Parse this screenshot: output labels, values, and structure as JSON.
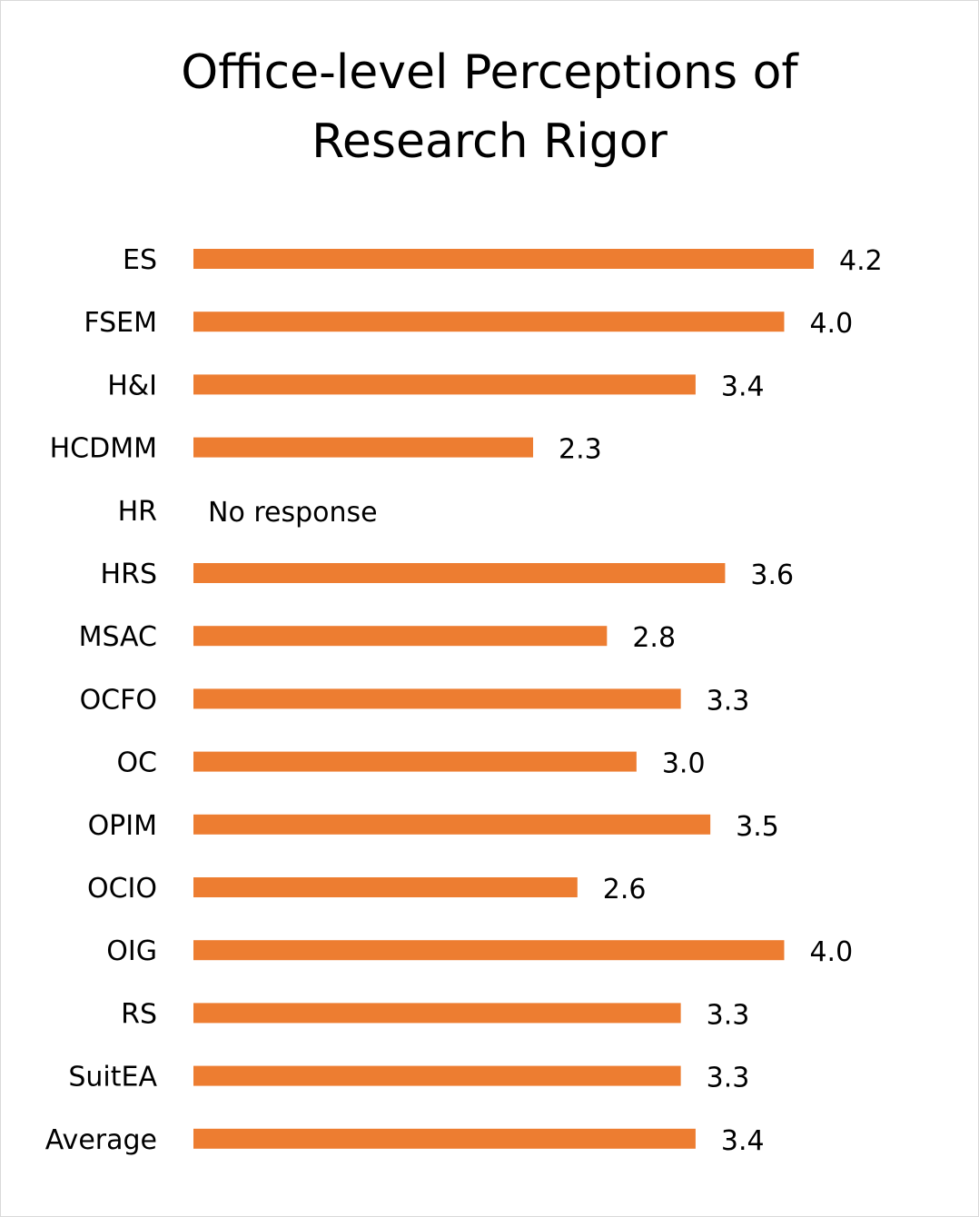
{
  "chart_data": {
    "type": "bar",
    "orientation": "horizontal",
    "title": "Office-level Perceptions of\nResearch Rigor",
    "categories": [
      "ES",
      "FSEM",
      "H&I",
      "HCDMM",
      "HR",
      "HRS",
      "MSAC",
      "OCFO",
      "OC",
      "OPIM",
      "OCIO",
      "OIG",
      "RS",
      "SuitEA",
      "Average"
    ],
    "values": [
      4.2,
      4.0,
      3.4,
      2.3,
      null,
      3.6,
      2.8,
      3.3,
      3.0,
      3.5,
      2.6,
      4.0,
      3.3,
      3.3,
      3.4
    ],
    "value_labels": [
      "4.2",
      "4.0",
      "3.4",
      "2.3",
      "No response",
      "3.6",
      "2.8",
      "3.3",
      "3.0",
      "3.5",
      "2.6",
      "4.0",
      "3.3",
      "3.3",
      "3.4"
    ],
    "bar_color": "#ED7D31",
    "xlim": [
      0,
      4.2
    ],
    "grid": false,
    "legend": "none"
  }
}
